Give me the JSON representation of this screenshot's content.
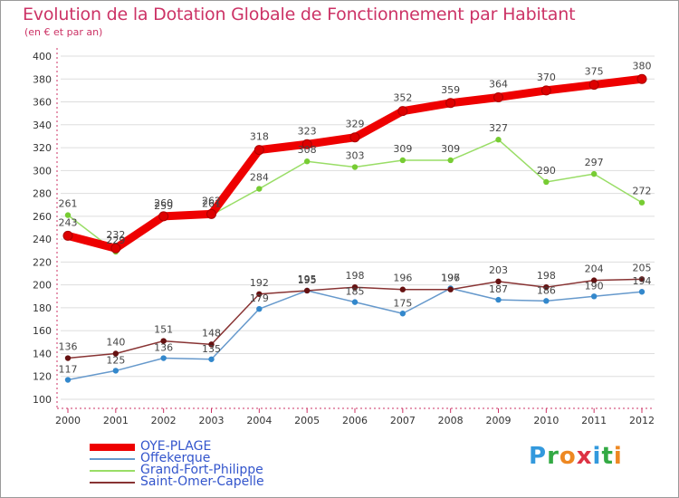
{
  "header": {
    "title": "Evolution de la Dotation Globale de Fonctionnement par Habitant",
    "subtitle": "(en € et par an)"
  },
  "logo": {
    "text": "Proxiti",
    "letters": [
      "P",
      "r",
      "o",
      "x",
      "i",
      "t",
      "i"
    ],
    "colors": [
      "#3399dd",
      "#33aa44",
      "#ee8822",
      "#dd3344",
      "#3399dd",
      "#33aa44",
      "#ee8822"
    ]
  },
  "colors": {
    "title": "#cc3366",
    "axis": "#cc3366",
    "grid": "#dddddd",
    "label": "#444444",
    "legend_text": "#3355cc"
  },
  "chart_data": {
    "type": "line",
    "title": "Evolution de la Dotation Globale de Fonctionnement par Habitant",
    "subtitle": "(en € et par an)",
    "x": [
      "2000",
      "2001",
      "2002",
      "2003",
      "2004",
      "2005",
      "2006",
      "2007",
      "2008",
      "2009",
      "2010",
      "2011",
      "2012"
    ],
    "ylim": [
      100,
      400
    ],
    "y_ticks": [
      100,
      120,
      140,
      160,
      180,
      200,
      220,
      240,
      260,
      280,
      300,
      320,
      340,
      360,
      380,
      400
    ],
    "grid": "horizontal",
    "legend_position": "bottom-left",
    "series": [
      {
        "name": "OYE-PLAGE",
        "color": "#ee0000",
        "marker_color": "#dd0000",
        "width": "thick",
        "values": [
          243,
          232,
          260,
          262,
          318,
          323,
          329,
          352,
          359,
          364,
          370,
          375,
          380
        ],
        "labels": [
          "243",
          "232",
          "260",
          "262",
          "318",
          "323",
          "329",
          "352",
          "359",
          "364",
          "370",
          "375",
          "380"
        ]
      },
      {
        "name": "Offekerque",
        "color": "#6699cc",
        "marker_color": "#3388cc",
        "width": "thin",
        "values": [
          117,
          125,
          136,
          135,
          179,
          195,
          185,
          175,
          197,
          187,
          186,
          190,
          194
        ],
        "labels": [
          "117",
          "125",
          "136",
          "135",
          "179",
          "195",
          "185",
          "175",
          "197",
          "187",
          "186",
          "190",
          "194"
        ]
      },
      {
        "name": "Grand-Fort-Philippe",
        "color": "#99dd66",
        "marker_color": "#77cc33",
        "width": "thin",
        "values": [
          261,
          229,
          259,
          261,
          284,
          308,
          303,
          309,
          309,
          327,
          290,
          297,
          272
        ],
        "labels": [
          "261",
          "229",
          "259",
          "261",
          "284",
          "308",
          "303",
          "309",
          "309",
          "327",
          "290",
          "297",
          "272"
        ]
      },
      {
        "name": "Saint-Omer-Capelle",
        "color": "#883333",
        "marker_color": "#661111",
        "width": "thin",
        "values": [
          136,
          140,
          151,
          148,
          192,
          195,
          198,
          196,
          196,
          203,
          198,
          204,
          205
        ],
        "labels": [
          "136",
          "140",
          "151",
          "148",
          "192",
          "195",
          "198",
          "196",
          "196",
          "203",
          "198",
          "204",
          "205"
        ]
      }
    ]
  }
}
